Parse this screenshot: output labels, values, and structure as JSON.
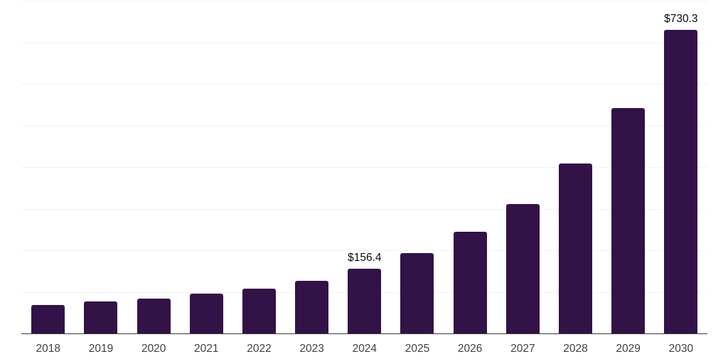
{
  "chart_data": {
    "type": "bar",
    "title": "",
    "xlabel": "",
    "ylabel": "",
    "categories": [
      "2018",
      "2019",
      "2020",
      "2021",
      "2022",
      "2023",
      "2024",
      "2025",
      "2026",
      "2027",
      "2028",
      "2029",
      "2030"
    ],
    "values": [
      68,
      77,
      84,
      95,
      107,
      126,
      156.4,
      193,
      244,
      311,
      409,
      542,
      730.3
    ],
    "data_labels": [
      {
        "index": 6,
        "text": "$156.4"
      },
      {
        "index": 12,
        "text": "$730.3"
      }
    ],
    "ylim": [
      0,
      800
    ],
    "gridline_step": 100,
    "grid": "horizontal",
    "y_tick_labels_shown": false,
    "legend": "none",
    "colors": {
      "bar": "#331247",
      "axis_line": "#3a3a3a",
      "gridline": "#f2f2f2",
      "x_tick_label": "#404040",
      "data_label": "#0a0a0a",
      "background": "#ffffff"
    }
  }
}
